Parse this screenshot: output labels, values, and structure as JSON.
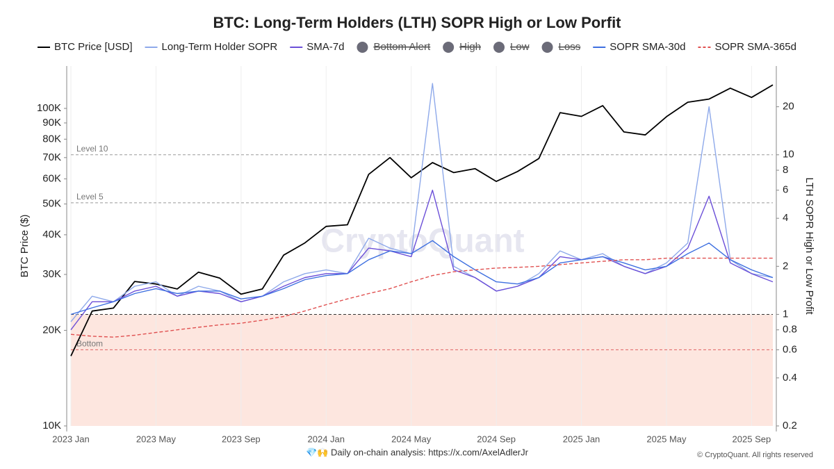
{
  "chart_data": {
    "type": "line",
    "title": "BTC: Long-Term Holders (LTH) SOPR High or Low Porfit",
    "ylabel": "BTC Price ($)",
    "y2label": "LTH SOPR High or Low Profit",
    "watermark": "CryptoQuant",
    "footer": "💎🙌 Daily on-chain analysis: https://x.com/AxelAdlerJr",
    "copyright": "© CryptoQuant. All rights reserved",
    "log_y": true,
    "log_y2": true,
    "grid": true,
    "x": [
      "2023-01",
      "2023-02",
      "2023-03",
      "2023-04",
      "2023-05",
      "2023-06",
      "2023-07",
      "2023-08",
      "2023-09",
      "2023-10",
      "2023-11",
      "2023-12",
      "2024-01",
      "2024-02",
      "2024-03",
      "2024-04",
      "2024-05",
      "2024-06",
      "2024-07",
      "2024-08",
      "2024-09",
      "2024-10",
      "2024-11",
      "2024-12",
      "2025-01",
      "2025-02",
      "2025-03",
      "2025-04",
      "2025-05",
      "2025-06",
      "2025-07",
      "2025-08",
      "2025-09",
      "2025-10"
    ],
    "xlim": [
      "2023-01",
      "2025-10"
    ],
    "xticks": [
      {
        "value": "2023-01",
        "label": "2023 Jan"
      },
      {
        "value": "2023-05",
        "label": "2023 May"
      },
      {
        "value": "2023-09",
        "label": "2023 Sep"
      },
      {
        "value": "2024-01",
        "label": "2024 Jan"
      },
      {
        "value": "2024-05",
        "label": "2024 May"
      },
      {
        "value": "2024-09",
        "label": "2024 Sep"
      },
      {
        "value": "2025-01",
        "label": "2025 Jan"
      },
      {
        "value": "2025-05",
        "label": "2025 May"
      },
      {
        "value": "2025-09",
        "label": "2025 Sep"
      }
    ],
    "ylim": [
      10000,
      136000
    ],
    "yticks": [
      {
        "value": 10000,
        "label": "10K"
      },
      {
        "value": 20000,
        "label": "20K"
      },
      {
        "value": 30000,
        "label": "30K"
      },
      {
        "value": 40000,
        "label": "40K"
      },
      {
        "value": 50000,
        "label": "50K"
      },
      {
        "value": 60000,
        "label": "60K"
      },
      {
        "value": 70000,
        "label": "70K"
      },
      {
        "value": 80000,
        "label": "80K"
      },
      {
        "value": 90000,
        "label": "90K"
      },
      {
        "value": 100000,
        "label": "100K"
      }
    ],
    "y2lim": [
      0.2,
      36
    ],
    "y2ticks": [
      0.2,
      0.4,
      0.6,
      0.8,
      1,
      2,
      4,
      6,
      8,
      10,
      20
    ],
    "levels": [
      {
        "value": 10,
        "label": "Level 10",
        "color": "#999999"
      },
      {
        "value": 5,
        "label": "Level 5",
        "color": "#999999"
      },
      {
        "value": 1,
        "color": "#333333",
        "shade_below": "#fde6df"
      },
      {
        "value": 0.6,
        "label": "Bottom",
        "color": "#e06060"
      }
    ],
    "series": [
      {
        "name": "BTC Price [USD]",
        "color": "#000000",
        "axis": "y",
        "values": [
          16600,
          23000,
          23500,
          28500,
          28000,
          27000,
          30500,
          29200,
          26000,
          27000,
          34500,
          37700,
          42500,
          43000,
          62000,
          70000,
          60500,
          67500,
          62800,
          64600,
          58900,
          63300,
          69500,
          97000,
          94400,
          102000,
          84300,
          82500,
          94200,
          104600,
          107000,
          115800,
          108300,
          118600
        ]
      },
      {
        "name": "Long-Term Holder SOPR",
        "color": "#8ea9ea",
        "axis": "y2",
        "values": [
          0.9,
          1.3,
          1.2,
          1.5,
          1.6,
          1.3,
          1.5,
          1.4,
          1.2,
          1.3,
          1.6,
          1.8,
          1.9,
          1.8,
          3.0,
          2.6,
          2.4,
          28,
          2.0,
          1.7,
          1.4,
          1.5,
          1.8,
          2.5,
          2.2,
          2.4,
          2.0,
          1.8,
          2.1,
          2.8,
          20,
          2.2,
          1.8,
          1.7
        ]
      },
      {
        "name": "SMA-7d",
        "color": "#6b4fd8",
        "axis": "y2",
        "values": [
          0.8,
          1.2,
          1.2,
          1.4,
          1.5,
          1.3,
          1.4,
          1.35,
          1.2,
          1.3,
          1.5,
          1.7,
          1.8,
          1.8,
          2.6,
          2.5,
          2.3,
          6.0,
          1.9,
          1.7,
          1.4,
          1.5,
          1.7,
          2.3,
          2.2,
          2.3,
          2.0,
          1.8,
          2.0,
          2.6,
          5.5,
          2.1,
          1.8,
          1.6
        ]
      },
      {
        "name": "Bottom Alert",
        "color": "#6b6b78",
        "hidden": true
      },
      {
        "name": "High",
        "color": "#6b6b78",
        "hidden": true
      },
      {
        "name": "Low",
        "color": "#6b6b78",
        "hidden": true
      },
      {
        "name": "Loss",
        "color": "#6b6b78",
        "hidden": true
      },
      {
        "name": "SOPR SMA-30d",
        "color": "#3d6fe0",
        "axis": "y2",
        "values": [
          1.0,
          1.1,
          1.2,
          1.35,
          1.45,
          1.35,
          1.4,
          1.4,
          1.25,
          1.3,
          1.45,
          1.65,
          1.75,
          1.8,
          2.2,
          2.5,
          2.4,
          2.9,
          2.3,
          1.9,
          1.6,
          1.55,
          1.7,
          2.1,
          2.2,
          2.3,
          2.1,
          1.9,
          2.0,
          2.4,
          2.8,
          2.2,
          1.9,
          1.7
        ]
      },
      {
        "name": "SOPR SMA-365d",
        "color": "#e05050",
        "axis": "y2",
        "line_style": "dashed",
        "values": [
          0.75,
          0.73,
          0.72,
          0.74,
          0.77,
          0.8,
          0.83,
          0.86,
          0.88,
          0.92,
          0.97,
          1.05,
          1.15,
          1.25,
          1.35,
          1.45,
          1.6,
          1.75,
          1.85,
          1.9,
          1.95,
          1.97,
          2.0,
          2.05,
          2.1,
          2.15,
          2.2,
          2.2,
          2.25,
          2.25,
          2.25,
          2.25,
          2.25,
          2.25
        ]
      }
    ]
  }
}
